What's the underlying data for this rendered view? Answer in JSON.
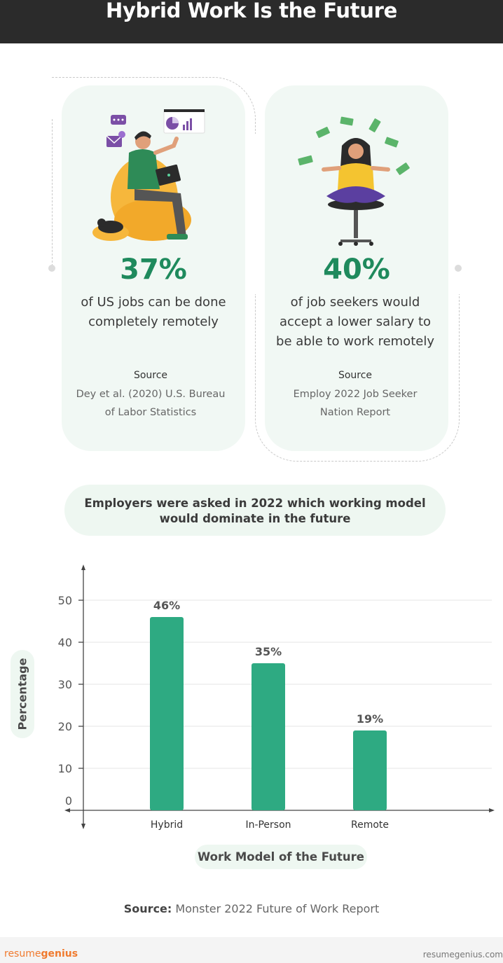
{
  "header": {
    "title": "Hybrid Work Is the Future"
  },
  "stats": [
    {
      "value": "37%",
      "text_lines": [
        "of US jobs can be done",
        "completely remotely"
      ],
      "source_label": "Source",
      "source_lines": [
        "Dey et al. (2020) U.S. Bureau",
        "of Labor Statistics"
      ]
    },
    {
      "value": "40%",
      "text_lines": [
        "of job seekers would",
        "accept a lower salary to",
        "be able to work remotely"
      ],
      "source_label": "Source",
      "source_lines": [
        "Employ 2022 Job Seeker",
        "Nation Report"
      ]
    }
  ],
  "question": {
    "lines": [
      "Employers were asked in 2022 which working model",
      "would dominate in the future"
    ]
  },
  "chart_data": {
    "type": "bar",
    "categories": [
      "Hybrid",
      "In-Person",
      "Remote"
    ],
    "values": [
      46,
      35,
      19
    ],
    "data_labels": [
      "46%",
      "35%",
      "19%"
    ],
    "ylabel": "Percentage",
    "xlabel": "Work Model of the Future",
    "yticks": [
      0,
      10,
      20,
      30,
      40,
      50
    ],
    "ylim": [
      0,
      50
    ],
    "grid": true,
    "bar_color": "#2eaa82"
  },
  "source": {
    "label": "Source:",
    "text": "Monster 2022 Future of Work Report"
  },
  "footer": {
    "brand_1": "resume",
    "brand_2": "genius",
    "site": "resumegenius.com"
  },
  "colors": {
    "accent": "#1f8a5d",
    "bar": "#2eaa82",
    "card_bg": "#f1f8f4",
    "header_bg": "#2b2b2b",
    "brand": "#f07a2e"
  }
}
